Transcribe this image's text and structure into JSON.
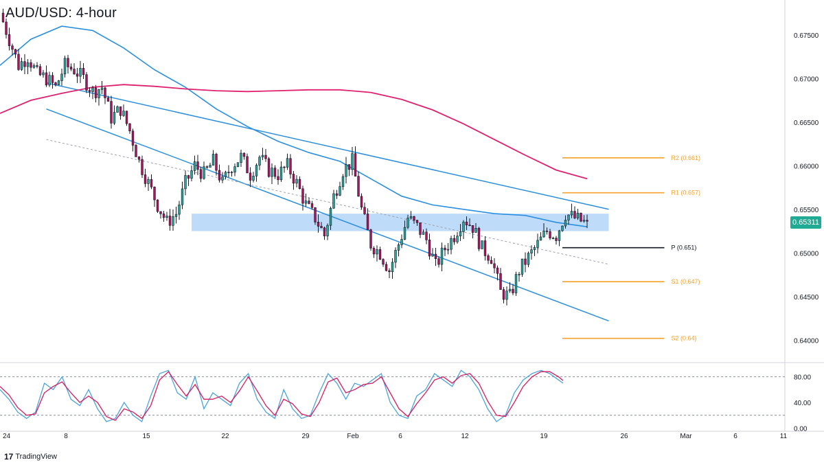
{
  "title": "AUD/USD: 4-hour",
  "brand": {
    "logo": "17",
    "name": "TradingView"
  },
  "colors": {
    "up": "#26a69a",
    "down": "#b0105e",
    "wick": "#131722",
    "ema100": "#2a8fe0",
    "ema200": "#e0206f",
    "channel": "#2a8fe0",
    "zone": "#a8cff7",
    "pivot_line": "#131722",
    "sr_line": "#f5a02a",
    "stoch_k": "#4aa3df",
    "stoch_d": "#d81b60",
    "grid": "#dddddd"
  },
  "chart_data": {
    "type": "candlestick",
    "symbol": "AUD/USD",
    "timeframe": "4-hour",
    "ylim": [
      0.6375,
      0.679
    ],
    "y_ticks": [
      "0.67500",
      "0.67000",
      "0.66500",
      "0.66000",
      "0.65500",
      "0.65000",
      "0.64500",
      "0.64000"
    ],
    "x_ticks": [
      "24",
      "8",
      "15",
      "22",
      "29",
      "Feb",
      "6",
      "12",
      "19",
      "26",
      "Mar",
      "6",
      "11"
    ],
    "last_price": "0.65311",
    "close_path": [
      [
        0,
        0.6775
      ],
      [
        3,
        0.6745
      ],
      [
        6,
        0.6715
      ],
      [
        9,
        0.6725
      ],
      [
        12,
        0.6705
      ],
      [
        15,
        0.67
      ],
      [
        18,
        0.669
      ],
      [
        21,
        0.6715
      ],
      [
        24,
        0.671
      ],
      [
        27,
        0.67
      ],
      [
        30,
        0.6685
      ],
      [
        33,
        0.669
      ],
      [
        36,
        0.6655
      ],
      [
        39,
        0.6665
      ],
      [
        42,
        0.664
      ],
      [
        45,
        0.6605
      ],
      [
        48,
        0.658
      ],
      [
        51,
        0.6555
      ],
      [
        54,
        0.6535
      ],
      [
        57,
        0.6545
      ],
      [
        60,
        0.658
      ],
      [
        63,
        0.66
      ],
      [
        66,
        0.659
      ],
      [
        69,
        0.6605
      ],
      [
        72,
        0.658
      ],
      [
        75,
        0.66
      ],
      [
        78,
        0.661
      ],
      [
        81,
        0.659
      ],
      [
        84,
        0.661
      ],
      [
        87,
        0.6595
      ],
      [
        90,
        0.659
      ],
      [
        93,
        0.66
      ],
      [
        96,
        0.658
      ],
      [
        99,
        0.6555
      ],
      [
        102,
        0.654
      ],
      [
        105,
        0.652
      ],
      [
        108,
        0.6565
      ],
      [
        111,
        0.6595
      ],
      [
        114,
        0.6605
      ],
      [
        117,
        0.655
      ],
      [
        120,
        0.651
      ],
      [
        123,
        0.65
      ],
      [
        126,
        0.648
      ],
      [
        129,
        0.651
      ],
      [
        132,
        0.654
      ],
      [
        135,
        0.653
      ],
      [
        138,
        0.6515
      ],
      [
        141,
        0.6485
      ],
      [
        144,
        0.6505
      ],
      [
        147,
        0.652
      ],
      [
        150,
        0.654
      ],
      [
        153,
        0.653
      ],
      [
        156,
        0.6505
      ],
      [
        159,
        0.6495
      ],
      [
        162,
        0.6455
      ],
      [
        165,
        0.645
      ],
      [
        168,
        0.648
      ],
      [
        171,
        0.6495
      ],
      [
        174,
        0.651
      ],
      [
        177,
        0.6525
      ],
      [
        180,
        0.652
      ],
      [
        183,
        0.6545
      ],
      [
        186,
        0.654
      ],
      [
        189,
        0.6535
      ],
      [
        190,
        0.65311
      ]
    ],
    "ema100": [
      [
        0,
        0.6715
      ],
      [
        10,
        0.6745
      ],
      [
        20,
        0.676
      ],
      [
        30,
        0.6755
      ],
      [
        40,
        0.6735
      ],
      [
        50,
        0.671
      ],
      [
        60,
        0.669
      ],
      [
        70,
        0.6665
      ],
      [
        80,
        0.6645
      ],
      [
        90,
        0.6628
      ],
      [
        100,
        0.6615
      ],
      [
        110,
        0.6605
      ],
      [
        120,
        0.6585
      ],
      [
        130,
        0.6565
      ],
      [
        140,
        0.6555
      ],
      [
        150,
        0.655
      ],
      [
        160,
        0.6545
      ],
      [
        170,
        0.6543
      ],
      [
        180,
        0.6535
      ],
      [
        190,
        0.653
      ]
    ],
    "ema200": [
      [
        0,
        0.666
      ],
      [
        10,
        0.6675
      ],
      [
        20,
        0.6683
      ],
      [
        30,
        0.669
      ],
      [
        40,
        0.6693
      ],
      [
        50,
        0.6691
      ],
      [
        60,
        0.6688
      ],
      [
        70,
        0.6686
      ],
      [
        80,
        0.6685
      ],
      [
        90,
        0.6686
      ],
      [
        100,
        0.6687
      ],
      [
        110,
        0.6687
      ],
      [
        120,
        0.6684
      ],
      [
        130,
        0.6676
      ],
      [
        140,
        0.6664
      ],
      [
        150,
        0.6648
      ],
      [
        160,
        0.663
      ],
      [
        170,
        0.6612
      ],
      [
        180,
        0.6595
      ],
      [
        190,
        0.6585
      ]
    ],
    "channel": {
      "upper": [
        [
          15,
          0.6695
        ],
        [
          197,
          0.655
        ]
      ],
      "lower": [
        [
          15,
          0.6665
        ],
        [
          197,
          0.6422
        ]
      ],
      "midline": [
        [
          15,
          0.663
        ],
        [
          197,
          0.6487
        ]
      ]
    },
    "zone": {
      "from": 0.6525,
      "to": 0.6545,
      "x": [
        62,
        197
      ]
    },
    "levels": [
      {
        "label": "R2 (0.661)",
        "value": 0.6609,
        "color": "#f5a02a"
      },
      {
        "label": "R1 (0.657)",
        "value": 0.6569,
        "color": "#f5a02a"
      },
      {
        "label": "P (0.651)",
        "value": 0.6506,
        "color": "#131722"
      },
      {
        "label": "S1 (0.647)",
        "value": 0.6467,
        "color": "#f5a02a"
      },
      {
        "label": "S2 (0.64)",
        "value": 0.6402,
        "color": "#f5a02a"
      }
    ],
    "levels_x": [
      182,
      215
    ],
    "stochastic": {
      "ylim": [
        -5,
        100
      ],
      "y_ticks": [
        "80.00",
        "40.00",
        "0.00"
      ],
      "bands": [
        80,
        20
      ],
      "k": [
        [
          0,
          60
        ],
        [
          4,
          45
        ],
        [
          8,
          25
        ],
        [
          12,
          15
        ],
        [
          16,
          25
        ],
        [
          20,
          70
        ],
        [
          24,
          60
        ],
        [
          28,
          80
        ],
        [
          32,
          45
        ],
        [
          36,
          35
        ],
        [
          40,
          60
        ],
        [
          44,
          30
        ],
        [
          48,
          10
        ],
        [
          52,
          15
        ],
        [
          56,
          40
        ],
        [
          60,
          20
        ],
        [
          64,
          10
        ],
        [
          68,
          50
        ],
        [
          72,
          85
        ],
        [
          76,
          90
        ],
        [
          80,
          55
        ],
        [
          84,
          45
        ],
        [
          88,
          80
        ],
        [
          92,
          30
        ],
        [
          96,
          55
        ],
        [
          100,
          45
        ],
        [
          104,
          35
        ],
        [
          108,
          70
        ],
        [
          112,
          85
        ],
        [
          116,
          45
        ],
        [
          120,
          25
        ],
        [
          124,
          15
        ],
        [
          128,
          60
        ],
        [
          132,
          30
        ],
        [
          136,
          15
        ],
        [
          140,
          20
        ],
        [
          144,
          55
        ],
        [
          148,
          85
        ],
        [
          152,
          70
        ],
        [
          156,
          45
        ],
        [
          160,
          70
        ],
        [
          164,
          65
        ],
        [
          168,
          75
        ],
        [
          172,
          85
        ],
        [
          176,
          40
        ],
        [
          180,
          20
        ],
        [
          184,
          15
        ],
        [
          188,
          50
        ],
        [
          192,
          60
        ],
        [
          196,
          85
        ],
        [
          200,
          75
        ],
        [
          204,
          65
        ],
        [
          208,
          90
        ],
        [
          212,
          80
        ],
        [
          216,
          60
        ],
        [
          220,
          30
        ],
        [
          224,
          10
        ],
        [
          228,
          20
        ],
        [
          232,
          55
        ],
        [
          236,
          75
        ],
        [
          240,
          85
        ],
        [
          244,
          90
        ],
        [
          248,
          85
        ],
        [
          252,
          75
        ],
        [
          254,
          70
        ]
      ],
      "d": [
        [
          0,
          65
        ],
        [
          4,
          52
        ],
        [
          8,
          32
        ],
        [
          12,
          20
        ],
        [
          16,
          22
        ],
        [
          20,
          55
        ],
        [
          24,
          65
        ],
        [
          28,
          72
        ],
        [
          32,
          55
        ],
        [
          36,
          40
        ],
        [
          40,
          50
        ],
        [
          44,
          40
        ],
        [
          48,
          18
        ],
        [
          52,
          12
        ],
        [
          56,
          30
        ],
        [
          60,
          25
        ],
        [
          64,
          15
        ],
        [
          68,
          35
        ],
        [
          72,
          75
        ],
        [
          76,
          88
        ],
        [
          80,
          68
        ],
        [
          84,
          50
        ],
        [
          88,
          68
        ],
        [
          92,
          45
        ],
        [
          96,
          45
        ],
        [
          100,
          50
        ],
        [
          104,
          40
        ],
        [
          108,
          58
        ],
        [
          112,
          80
        ],
        [
          116,
          58
        ],
        [
          120,
          35
        ],
        [
          124,
          20
        ],
        [
          128,
          45
        ],
        [
          132,
          38
        ],
        [
          136,
          22
        ],
        [
          140,
          18
        ],
        [
          144,
          40
        ],
        [
          148,
          72
        ],
        [
          152,
          78
        ],
        [
          156,
          55
        ],
        [
          160,
          60
        ],
        [
          164,
          68
        ],
        [
          168,
          70
        ],
        [
          172,
          80
        ],
        [
          176,
          55
        ],
        [
          180,
          30
        ],
        [
          184,
          18
        ],
        [
          188,
          38
        ],
        [
          192,
          55
        ],
        [
          196,
          75
        ],
        [
          200,
          80
        ],
        [
          204,
          70
        ],
        [
          208,
          82
        ],
        [
          212,
          85
        ],
        [
          216,
          70
        ],
        [
          220,
          42
        ],
        [
          224,
          20
        ],
        [
          228,
          18
        ],
        [
          232,
          40
        ],
        [
          236,
          65
        ],
        [
          240,
          80
        ],
        [
          244,
          88
        ],
        [
          248,
          88
        ],
        [
          252,
          80
        ],
        [
          254,
          74
        ]
      ]
    }
  }
}
